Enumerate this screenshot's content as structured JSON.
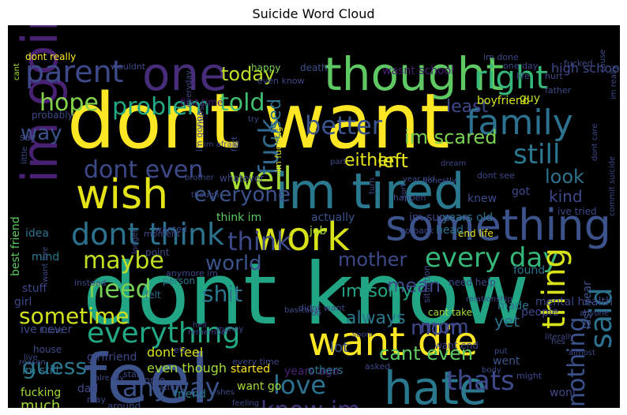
{
  "title": "Suicide Word Cloud",
  "words": [
    {
      "text": "dont want",
      "color": "#fde725"
    },
    {
      "text": "dont know",
      "color": "#21a585"
    },
    {
      "text": "feel",
      "color": "#3b528b"
    },
    {
      "text": "one",
      "color": "#472c7a"
    },
    {
      "text": "thought",
      "color": "#5ec962"
    },
    {
      "text": "im going",
      "color": "#482173"
    },
    {
      "text": "im tired",
      "color": "#2a788e"
    },
    {
      "text": "wish",
      "color": "#e5e419"
    },
    {
      "text": "something",
      "color": "#3b528b"
    },
    {
      "text": "want die",
      "color": "#fde725"
    },
    {
      "text": "hate",
      "color": "#2a788e"
    },
    {
      "text": "work",
      "color": "#d8e219"
    },
    {
      "text": "right",
      "color": "#35b779"
    },
    {
      "text": "family",
      "color": "#2c728e"
    },
    {
      "text": "parent",
      "color": "#3e4989"
    },
    {
      "text": "hope",
      "color": "#84d44b"
    },
    {
      "text": "problem",
      "color": "#22a884"
    },
    {
      "text": "told",
      "color": "#42be71"
    },
    {
      "text": "better",
      "color": "#3b528b"
    },
    {
      "text": "today",
      "color": "#bddf26"
    },
    {
      "text": "still",
      "color": "#2a788e"
    },
    {
      "text": "im scared",
      "color": "#7ad151"
    },
    {
      "text": "well",
      "color": "#a5db36"
    },
    {
      "text": "dont even",
      "color": "#3e4989"
    },
    {
      "text": "fuck",
      "color": "#31688e"
    },
    {
      "text": "left",
      "color": "#e5e419"
    },
    {
      "text": "everyone",
      "color": "#3b528b"
    },
    {
      "text": "dont think",
      "color": "#2c728e"
    },
    {
      "text": "think",
      "color": "#3e4989"
    },
    {
      "text": "maybe",
      "color": "#c2df23"
    },
    {
      "text": "world",
      "color": "#3b528b"
    },
    {
      "text": "mother",
      "color": "#3e4989"
    },
    {
      "text": "every day",
      "color": "#35b779"
    },
    {
      "text": "need",
      "color": "#75d054"
    },
    {
      "text": "everything",
      "color": "#22a884"
    },
    {
      "text": "sometime",
      "color": "#d2e21b"
    },
    {
      "text": "shit",
      "color": "#2a788e"
    },
    {
      "text": "mom",
      "color": "#3e4989"
    },
    {
      "text": "said",
      "color": "#2c728e"
    },
    {
      "text": "thing",
      "color": "#d8e219"
    },
    {
      "text": "nothing",
      "color": "#3b528b"
    },
    {
      "text": "love",
      "color": "#2c728e"
    },
    {
      "text": "guess",
      "color": "#2a788e"
    },
    {
      "text": "anyway",
      "color": "#3b528b"
    },
    {
      "text": "know im",
      "color": "#46337e"
    },
    {
      "text": "thats",
      "color": "#3e4989"
    },
    {
      "text": "used",
      "color": "#2c728e"
    },
    {
      "text": "way",
      "color": "#3b528b"
    },
    {
      "text": "look",
      "color": "#2c728e"
    },
    {
      "text": "mean",
      "color": "#3e4989"
    },
    {
      "text": "always",
      "color": "#2a788e"
    },
    {
      "text": "cant even",
      "color": "#5ec962"
    },
    {
      "text": "want kill",
      "color": "#fde725"
    },
    {
      "text": "suicidal thought",
      "color": "#bddf26"
    },
    {
      "text": "much",
      "color": "#a5db36"
    },
    {
      "text": "least",
      "color": "#3e4989"
    },
    {
      "text": "either",
      "color": "#e5e419"
    },
    {
      "text": "yet",
      "color": "#2c728e"
    },
    {
      "text": "mom",
      "color": "#3e4989"
    },
    {
      "text": "kind",
      "color": "#3e4989"
    },
    {
      "text": "im sorry",
      "color": "#22a884"
    },
    {
      "text": "lot",
      "color": "#3b528b"
    },
    {
      "text": "dont feel",
      "color": "#d8e219"
    },
    {
      "text": "even though",
      "color": "#a5db36"
    },
    {
      "text": "high school",
      "color": "#3e4989"
    },
    {
      "text": "wasnt school",
      "color": "#482173"
    },
    {
      "text": "death",
      "color": "#3b528b"
    },
    {
      "text": "happy",
      "color": "#75d054"
    },
    {
      "text": "dont really",
      "color": "#fde725"
    },
    {
      "text": "one day",
      "color": "#3e4989"
    },
    {
      "text": "best friend",
      "color": "#5ec962"
    },
    {
      "text": "think im",
      "color": "#5ec962"
    },
    {
      "text": "mental health",
      "color": "#3e4989"
    },
    {
      "text": "years ago",
      "color": "#482173"
    },
    {
      "text": "ive tried",
      "color": "#3e4989"
    },
    {
      "text": "last year",
      "color": "#3b528b"
    },
    {
      "text": "im sure",
      "color": "#3e4989"
    },
    {
      "text": "friend",
      "color": "#2a788e"
    },
    {
      "text": "girl",
      "color": "#3e4989"
    },
    {
      "text": "dad",
      "color": "#3e4989"
    },
    {
      "text": "job",
      "color": "#a5db36"
    },
    {
      "text": "fucking",
      "color": "#a5db36"
    },
    {
      "text": "im still",
      "color": "#2c728e"
    },
    {
      "text": "started",
      "color": "#fde725"
    },
    {
      "text": "want go",
      "color": "#a5db36"
    },
    {
      "text": "others",
      "color": "#2a788e"
    },
    {
      "text": "kid",
      "color": "#3e4989"
    },
    {
      "text": "people",
      "color": "#3e4989"
    },
    {
      "text": "made",
      "color": "#2c728e"
    },
    {
      "text": "went",
      "color": "#3b528b"
    },
    {
      "text": "wont",
      "color": "#3e4989"
    },
    {
      "text": "actually",
      "color": "#3b528b"
    },
    {
      "text": "years old",
      "color": "#2c728e"
    },
    {
      "text": "end life",
      "color": "#e5e419"
    },
    {
      "text": "guy",
      "color": "#c2df23"
    },
    {
      "text": "boyfriend",
      "color": "#d8e219"
    },
    {
      "text": "head",
      "color": "#2c728e"
    },
    {
      "text": "knew",
      "color": "#3e4989"
    },
    {
      "text": "got",
      "color": "#3e4989"
    },
    {
      "text": "found",
      "color": "#2c728e"
    },
    {
      "text": "stuff",
      "color": "#3e4989"
    },
    {
      "text": "idea",
      "color": "#2c728e"
    },
    {
      "text": "mind",
      "color": "#2a788e"
    },
    {
      "text": "say",
      "color": "#3e4989"
    },
    {
      "text": "probably",
      "color": "#3e4989"
    },
    {
      "text": "first time",
      "color": "#482173"
    },
    {
      "text": "im gonna",
      "color": "#3e4989"
    },
    {
      "text": "im fucking",
      "color": "#e5e419"
    },
    {
      "text": "ive never",
      "color": "#3e4989"
    },
    {
      "text": "house",
      "color": "#3e4989"
    },
    {
      "text": "girlfriend",
      "color": "#3e4989"
    },
    {
      "text": "around",
      "color": "#3e4989"
    },
    {
      "text": "plan",
      "color": "#3e4989"
    },
    {
      "text": "seem",
      "color": "#3e4989"
    },
    {
      "text": "really want",
      "color": "#a5db36"
    },
    {
      "text": "help",
      "color": "#3e4989"
    },
    {
      "text": "recently",
      "color": "#3e4989"
    },
    {
      "text": "use",
      "color": "#3e4989"
    },
    {
      "text": "start",
      "color": "#3e4989"
    },
    {
      "text": "may",
      "color": "#3e4989"
    },
    {
      "text": "come",
      "color": "#3e4989"
    },
    {
      "text": "felt",
      "color": "#2c728e"
    },
    {
      "text": "person",
      "color": "#2c728e"
    },
    {
      "text": "point",
      "color": "#3e4989"
    },
    {
      "text": "longer",
      "color": "#3e4989"
    },
    {
      "text": "wanted",
      "color": "#3e4989"
    },
    {
      "text": "moment",
      "color": "#3e4989"
    },
    {
      "text": "whatever",
      "color": "#3e4989"
    },
    {
      "text": "anymore im",
      "color": "#3e4989"
    },
    {
      "text": "every time",
      "color": "#3e4989"
    },
    {
      "text": "didnt want",
      "color": "#3e4989"
    },
    {
      "text": "cant take",
      "color": "#a5db36"
    },
    {
      "text": "need help",
      "color": "#3e4989"
    },
    {
      "text": "want end",
      "color": "#3e4989"
    },
    {
      "text": "commit suicide",
      "color": "#3e4989"
    },
    {
      "text": "dont care",
      "color": "#3e4989"
    },
    {
      "text": "even know",
      "color": "#3e4989"
    },
    {
      "text": "wouldnt",
      "color": "#3e4989"
    },
    {
      "text": "im really",
      "color": "#3e4989"
    },
    {
      "text": "life",
      "color": "#3e4989"
    },
    {
      "text": "hurt",
      "color": "#3e4989"
    },
    {
      "text": "fucked",
      "color": "#3e4989"
    },
    {
      "text": "im done",
      "color": "#3e4989"
    },
    {
      "text": "father",
      "color": "#3e4989"
    },
    {
      "text": "cant",
      "color": "#a5db36"
    },
    {
      "text": "want live",
      "color": "#3e4989"
    },
    {
      "text": "dont see",
      "color": "#3e4989"
    },
    {
      "text": "go back",
      "color": "#3e4989"
    },
    {
      "text": "soon",
      "color": "#3e4989"
    },
    {
      "text": "put",
      "color": "#3e4989"
    },
    {
      "text": "situation",
      "color": "#3e4989"
    },
    {
      "text": "relationship",
      "color": "#3e4989"
    },
    {
      "text": "anyone",
      "color": "#3e4989"
    },
    {
      "text": "almost",
      "color": "#3e4989"
    },
    {
      "text": "literally",
      "color": "#3e4989"
    },
    {
      "text": "asked",
      "color": "#3e4989"
    },
    {
      "text": "hes",
      "color": "#3e4989"
    },
    {
      "text": "took",
      "color": "#3e4989"
    },
    {
      "text": "might",
      "color": "#3e4989"
    },
    {
      "text": "body",
      "color": "#3e4989"
    },
    {
      "text": "feeling",
      "color": "#3e4989"
    },
    {
      "text": "basically",
      "color": "#3e4989"
    },
    {
      "text": "shes",
      "color": "#3e4989"
    },
    {
      "text": "already",
      "color": "#3e4989"
    },
    {
      "text": "matter",
      "color": "#3e4989"
    },
    {
      "text": "money",
      "color": "#3e4989"
    },
    {
      "text": "remember",
      "color": "#3e4989"
    },
    {
      "text": "live",
      "color": "#3e4989"
    },
    {
      "text": "etc",
      "color": "#3e4989"
    },
    {
      "text": "hell",
      "color": "#3e4989"
    },
    {
      "text": "bo",
      "color": "#3e4989"
    },
    {
      "text": "instead",
      "color": "#3e4989"
    },
    {
      "text": "reason",
      "color": "#3e4989"
    },
    {
      "text": "future",
      "color": "#3e4989"
    },
    {
      "text": "brother",
      "color": "#3e4989"
    },
    {
      "text": "though",
      "color": "#3e4989"
    },
    {
      "text": "little",
      "color": "#3e4989"
    },
    {
      "text": "try",
      "color": "#3e4989"
    },
    {
      "text": "everyday",
      "color": "#3e4989"
    },
    {
      "text": "course",
      "color": "#3e4989"
    },
    {
      "text": "im afraid",
      "color": "#3e4989"
    },
    {
      "text": "fact",
      "color": "#3e4989"
    },
    {
      "text": "part",
      "color": "#3e4989"
    },
    {
      "text": "sort",
      "color": "#3e4989"
    },
    {
      "text": "dream",
      "color": "#3e4989"
    },
    {
      "text": "honestly",
      "color": "#3e4989"
    },
    {
      "text": "year old",
      "color": "#3e4989"
    },
    {
      "text": "happen",
      "color": "#3e4989"
    },
    {
      "text": "turn",
      "color": "#3e4989"
    },
    {
      "text": "cause",
      "color": "#3e4989"
    },
    {
      "text": "now",
      "color": "#2c728e"
    },
    {
      "text": "long time",
      "color": "#3e4989"
    },
    {
      "text": "ive always",
      "color": "#3e4989"
    }
  ]
}
